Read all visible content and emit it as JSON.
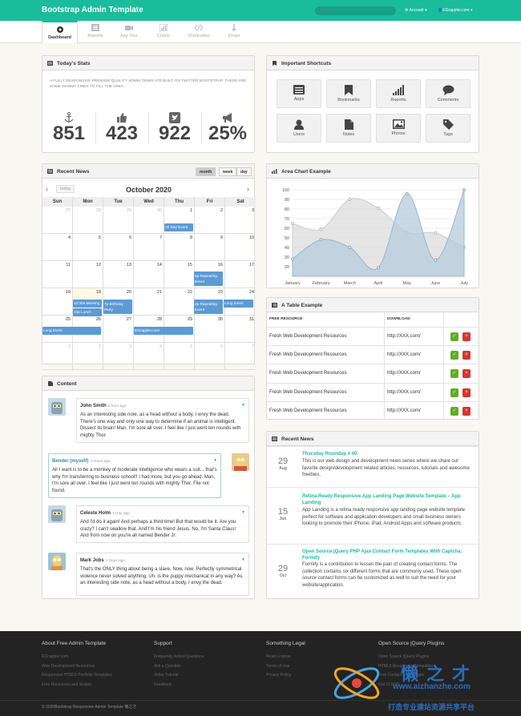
{
  "brand": "Bootstrap Admin Template",
  "search": {
    "placeholder": "Search"
  },
  "account_menu": "Account",
  "user_menu": "EGrappler.com",
  "nav": [
    {
      "label": "Dashboard",
      "icon": "dashboard-icon"
    },
    {
      "label": "Reports",
      "icon": "list-icon"
    },
    {
      "label": "App Tour",
      "icon": "camera-icon"
    },
    {
      "label": "Charts",
      "icon": "bar-chart-icon"
    },
    {
      "label": "Shortcodes",
      "icon": "code-icon"
    },
    {
      "label": "Drops",
      "icon": "arrow-down-icon"
    }
  ],
  "stats": {
    "title": "Today's Stats",
    "desc": "A FULLY RESPONSIVE PREMIUM QUALITY ADMIN TEMPLATE BUILT ON TWITTER BOOTSTRAP. THESE ARE SOME DUMMY LINES TO FILL THE AREA.",
    "items": [
      {
        "icon": "anchor-icon",
        "value": "851"
      },
      {
        "icon": "thumbs-up-icon",
        "value": "423"
      },
      {
        "icon": "twitter-icon",
        "value": "922"
      },
      {
        "icon": "bullhorn-icon",
        "value": "25%"
      }
    ]
  },
  "shortcuts": {
    "title": "Important Shortcuts",
    "items": [
      {
        "label": "Apps",
        "icon": "list-alt-icon"
      },
      {
        "label": "Bookmarks",
        "icon": "bookmark-icon"
      },
      {
        "label": "Reports",
        "icon": "signal-icon"
      },
      {
        "label": "Comments",
        "icon": "comment-icon"
      },
      {
        "label": "Users",
        "icon": "user-icon"
      },
      {
        "label": "Notes",
        "icon": "file-icon"
      },
      {
        "label": "Photos",
        "icon": "picture-icon"
      },
      {
        "label": "Tags",
        "icon": "tag-icon"
      }
    ]
  },
  "calendar": {
    "title": "Recent News",
    "views": [
      "month",
      "week",
      "day"
    ],
    "today": "today",
    "month_title": "October 2020",
    "days": [
      "Sun",
      "Mon",
      "Tue",
      "Wed",
      "Thu",
      "Fri",
      "Sat"
    ],
    "weeks": [
      [
        "27",
        "28",
        "29",
        "30",
        "1",
        "2",
        "3"
      ],
      [
        "4",
        "5",
        "6",
        "7",
        "8",
        "9",
        "10"
      ],
      [
        "11",
        "12",
        "13",
        "14",
        "15",
        "16",
        "17"
      ],
      [
        "18",
        "19",
        "20",
        "21",
        "22",
        "23",
        "24"
      ],
      [
        "25",
        "26",
        "27",
        "28",
        "29",
        "30",
        "31"
      ],
      [
        "1",
        "2",
        "3",
        "4",
        "5",
        "6",
        "7"
      ]
    ],
    "events": {
      "all_day": "All Day Event",
      "repeating1": "4p Repeating Event",
      "meeting": "10:30a Meeting",
      "lunch": "12p Lunch",
      "birthday": "7p Birthday Party",
      "repeating2": "4p Repeating Event",
      "long1": "Long Event",
      "long2": "Long Event",
      "egrappler": "EGrappler.com"
    }
  },
  "area_chart": {
    "title": "Area Chart Example"
  },
  "chart_data": {
    "type": "area",
    "title": "Area Chart Example",
    "categories": [
      "January",
      "February",
      "March",
      "April",
      "May",
      "June",
      "July"
    ],
    "ylim": [
      10,
      100
    ],
    "yticks": [
      20,
      30,
      40,
      50,
      60,
      70,
      80,
      90,
      100
    ],
    "series": [
      {
        "values": [
          65,
          59,
          90,
          81,
          56,
          55,
          40
        ],
        "fill": "#dcdcdc"
      },
      {
        "values": [
          28,
          48,
          40,
          19,
          96,
          27,
          100
        ],
        "fill": "#b6cbdc"
      }
    ]
  },
  "table": {
    "title": "A Table Example",
    "headers": [
      "FREE RESOURCE",
      "DOWNLOAD"
    ],
    "rows": [
      [
        "Fresh Web Development Resources",
        "http://XXX.com/"
      ],
      [
        "Fresh Web Development Resources",
        "http://XXX.com/"
      ],
      [
        "Fresh Web Development Resources",
        "http://XXX.com/"
      ],
      [
        "Fresh Web Development Resources",
        "http://XXX.com/"
      ],
      [
        "Fresh Web Development Resources",
        "http://XXX.com/"
      ]
    ]
  },
  "content": {
    "title": "Content",
    "posts": [
      {
        "author": "John Smith",
        "time": "1 hour ago",
        "text": "As an interesting side note, as a head without a body, I envy the dead. There's one way and only one way to determine if an animal is intelligent. Dissect its brain! Man, I'm sore all over. I feel like I just went ten rounds with mighty Thor."
      },
      {
        "author": "Bender (myself)",
        "time": "4 hours ago",
        "text": "All I want is to be a monkey of moderate intelligence who wears a suit... that's why I'm transferring to business school!! I had more, but you go ahead. Man, I'm sore all over. I feel like I just went ten rounds with mighty Thor. File not found."
      },
      {
        "author": "Celeste Holm",
        "time": "1 Day ago",
        "text": "And I'd do it again! And perhaps a third time! But that would be it. Are you crazy? I can't swallow that. And I'm his friend Jesus. No, I'm Santa Claus! And from now on you're all named Bender Jr."
      },
      {
        "author": "Mark Jobs",
        "time": "2 Days ago",
        "text": "That's the ONLY thing about being a slave. Now, now. Perfectly symmetrical violence never solved anything. Uh, is the puppy mechanical in any way? As an interesting side note, as a head without a body, I envy the dead."
      }
    ]
  },
  "news": {
    "title": "Recent News",
    "items": [
      {
        "day": "29",
        "month": "Aug",
        "title": "Thursday Roundup # 40",
        "text": "This is our web design and development news series where we share our favorite design/development related articles, resources, tutorials and awesome freebies."
      },
      {
        "day": "15",
        "month": "Jun",
        "title": "Retina Ready Responsive App Landing Page Website Template – App Landing",
        "text": "App Landing is a retina ready responsive app landing page website template perfect for software and application developers and small business owners looking to promote their iPhone, iPad, Android Apps and software products."
      },
      {
        "day": "29",
        "month": "Oct",
        "title": "Open Source jQuery PHP Ajax Contact Form Templates With Captcha: Formify",
        "text": "Formify is a contribution to lessen the pain of creating contact forms. The collection contains six different forms that are commonly used. These open source contact forms can be customized as well to suit the need for your website/application."
      }
    ]
  },
  "footer": {
    "cols": [
      {
        "title": "About Free Admin Template",
        "links": [
          "EGrappler.com",
          "Web Development Resources",
          "Responsive HTML5 Portfolio Templates",
          "Free Resources and Scripts"
        ]
      },
      {
        "title": "Support",
        "links": [
          "Frequently Asked Questions",
          "Ask a Question",
          "Video Tutorial",
          "Feedback"
        ]
      },
      {
        "title": "Something Legal",
        "links": [
          "Read License",
          "Terms of Use",
          "Privacy Policy"
        ]
      },
      {
        "title": "Open Source jQuery Plugins",
        "links": [
          "Open Source jQuery Plugins",
          "HTML5 Responsive Tempaltes",
          "Free Contact Form Plugin",
          "Flat UI PSD"
        ]
      }
    ],
    "copyright": "© 2020Bootstrap Responsive Admin Template 懒之才."
  },
  "watermark": {
    "brand": "懒之才",
    "url": "www.aizhanzhe.com",
    "slogan": "打造专业建站资源共享平台"
  },
  "colors": {
    "accent": "#1abc9c",
    "event": "#5b9bd5",
    "ok": "#5fae23",
    "delete": "#d9342b",
    "footer": "#232323"
  }
}
